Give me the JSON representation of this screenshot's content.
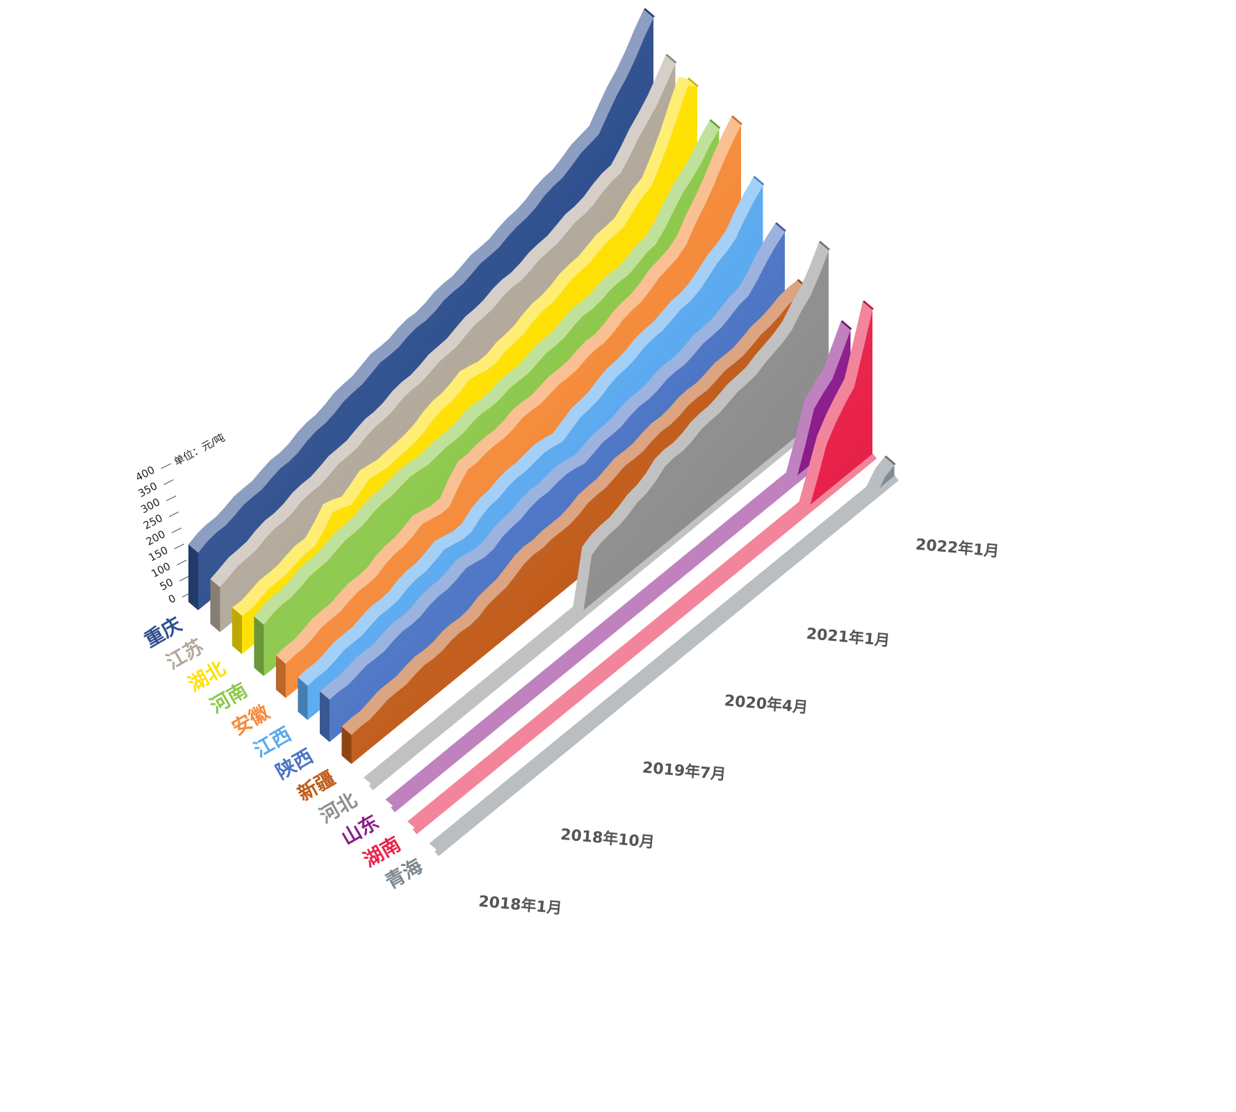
{
  "chart_data": {
    "type": "area",
    "subtype": "3d-ridgeline",
    "unit": "单位：元/吨",
    "y_ticks": [
      "0",
      "50",
      "100",
      "150",
      "200",
      "250",
      "300",
      "350",
      "400"
    ],
    "ylim": [
      0,
      400
    ],
    "x_labels": [
      "2018年1月",
      "2018年10月",
      "2019年7月",
      "2020年4月",
      "2021年1月",
      "2022年1月"
    ],
    "x_label_index": [
      0,
      9,
      18,
      27,
      36,
      48
    ],
    "x_points": 51,
    "series": [
      {
        "name": "重庆",
        "color": "#2E4F8E",
        "knots": [
          [
            0,
            168
          ],
          [
            5,
            192
          ],
          [
            10,
            215
          ],
          [
            15,
            248
          ],
          [
            20,
            280
          ],
          [
            23,
            292
          ],
          [
            25,
            300
          ],
          [
            30,
            324
          ],
          [
            35,
            350
          ],
          [
            40,
            390
          ],
          [
            44,
            430
          ],
          [
            47,
            525
          ],
          [
            50,
            630
          ]
        ]
      },
      {
        "name": "江苏",
        "color": "#B2A89A",
        "knots": [
          [
            0,
            132
          ],
          [
            5,
            160
          ],
          [
            10,
            185
          ],
          [
            15,
            210
          ],
          [
            20,
            238
          ],
          [
            25,
            262
          ],
          [
            30,
            292
          ],
          [
            35,
            315
          ],
          [
            40,
            345
          ],
          [
            44,
            380
          ],
          [
            47,
            460
          ],
          [
            50,
            560
          ]
        ]
      },
      {
        "name": "湖北",
        "color": "#FFE000",
        "knots": [
          [
            0,
            108
          ],
          [
            8,
            140
          ],
          [
            10,
            190
          ],
          [
            12,
            175
          ],
          [
            14,
            200
          ],
          [
            18,
            195
          ],
          [
            22,
            230
          ],
          [
            25,
            250
          ],
          [
            28,
            240
          ],
          [
            31,
            262
          ],
          [
            35,
            290
          ],
          [
            38,
            310
          ],
          [
            42,
            335
          ],
          [
            45,
            385
          ],
          [
            47,
            470
          ],
          [
            49,
            590
          ],
          [
            50,
            560
          ]
        ]
      },
      {
        "name": "河南",
        "color": "#8CC84B",
        "knots": [
          [
            0,
            150
          ],
          [
            5,
            175
          ],
          [
            10,
            200
          ],
          [
            15,
            225
          ],
          [
            20,
            225
          ],
          [
            23,
            238
          ],
          [
            28,
            248
          ],
          [
            32,
            265
          ],
          [
            35,
            282
          ],
          [
            40,
            300
          ],
          [
            43,
            320
          ],
          [
            46,
            400
          ],
          [
            50,
            500
          ]
        ]
      },
      {
        "name": "安徽",
        "color": "#F58A3A",
        "knots": [
          [
            0,
            95
          ],
          [
            5,
            120
          ],
          [
            10,
            140
          ],
          [
            12,
            155
          ],
          [
            15,
            175
          ],
          [
            18,
            165
          ],
          [
            20,
            230
          ],
          [
            23,
            232
          ],
          [
            26,
            245
          ],
          [
            30,
            255
          ],
          [
            35,
            275
          ],
          [
            40,
            315
          ],
          [
            44,
            360
          ],
          [
            47,
            470
          ],
          [
            50,
            580
          ]
        ]
      },
      {
        "name": "江西",
        "color": "#5AA9F0",
        "knots": [
          [
            0,
            95
          ],
          [
            5,
            115
          ],
          [
            10,
            135
          ],
          [
            15,
            165
          ],
          [
            18,
            155
          ],
          [
            20,
            188
          ],
          [
            25,
            210
          ],
          [
            28,
            205
          ],
          [
            30,
            225
          ],
          [
            35,
            265
          ],
          [
            40,
            295
          ],
          [
            42,
            305
          ],
          [
            44,
            330
          ],
          [
            47,
            380
          ],
          [
            50,
            470
          ]
        ]
      },
      {
        "name": "陕西",
        "color": "#4B74C4",
        "knots": [
          [
            0,
            118
          ],
          [
            5,
            132
          ],
          [
            10,
            150
          ],
          [
            15,
            175
          ],
          [
            18,
            168
          ],
          [
            20,
            190
          ],
          [
            25,
            212
          ],
          [
            28,
            205
          ],
          [
            31,
            220
          ],
          [
            35,
            238
          ],
          [
            38,
            250
          ],
          [
            40,
            258
          ],
          [
            44,
            280
          ],
          [
            46,
            300
          ],
          [
            50,
            400
          ]
        ]
      },
      {
        "name": "新疆",
        "color": "#C05A18",
        "knots": [
          [
            0,
            80
          ],
          [
            5,
            100
          ],
          [
            10,
            115
          ],
          [
            14,
            125
          ],
          [
            18,
            155
          ],
          [
            20,
            175
          ],
          [
            23,
            172
          ],
          [
            26,
            190
          ],
          [
            30,
            210
          ],
          [
            33,
            220
          ],
          [
            36,
            232
          ],
          [
            40,
            245
          ],
          [
            44,
            260
          ],
          [
            47,
            285
          ],
          [
            50,
            300
          ]
        ]
      },
      {
        "name": "河北",
        "color": "#8E8E8E",
        "knots": [
          [
            0,
            0
          ],
          [
            20,
            0
          ],
          [
            23,
            0
          ],
          [
            24,
            152
          ],
          [
            26,
            168
          ],
          [
            28,
            180
          ],
          [
            30,
            200
          ],
          [
            32,
            230
          ],
          [
            34,
            238
          ],
          [
            36,
            250
          ],
          [
            38,
            262
          ],
          [
            40,
            272
          ],
          [
            42,
            285
          ],
          [
            44,
            300
          ],
          [
            46,
            330
          ],
          [
            48,
            380
          ],
          [
            50,
            470
          ]
        ]
      },
      {
        "name": "山东",
        "color": "#8A1C8A",
        "knots": [
          [
            0,
            0
          ],
          [
            44,
            0
          ],
          [
            46,
            160
          ],
          [
            48,
            210
          ],
          [
            50,
            300
          ]
        ]
      },
      {
        "name": "湖南",
        "color": "#E8224A",
        "knots": [
          [
            0,
            0
          ],
          [
            43,
            0
          ],
          [
            45,
            150
          ],
          [
            48,
            250
          ],
          [
            50,
            420
          ]
        ]
      },
      {
        "name": "青海",
        "color": "#7E8890",
        "knots": [
          [
            0,
            0
          ],
          [
            48,
            0
          ],
          [
            49,
            35
          ],
          [
            50,
            40
          ]
        ]
      }
    ]
  }
}
